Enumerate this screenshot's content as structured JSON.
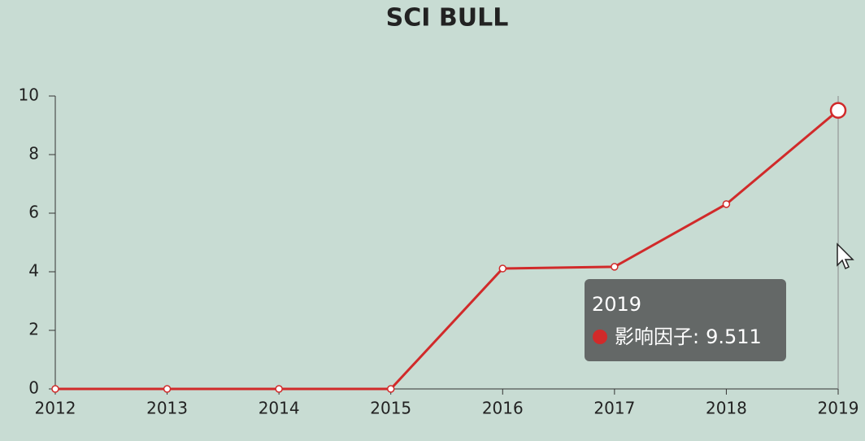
{
  "chart_data": {
    "type": "line",
    "title": "SCI BULL",
    "categories": [
      "2012",
      "2013",
      "2014",
      "2015",
      "2016",
      "2017",
      "2018",
      "2019"
    ],
    "series": [
      {
        "name": "影响因子",
        "color": "#d12a2a",
        "values": [
          0,
          0,
          0,
          0,
          4.11,
          4.17,
          6.31,
          9.511
        ]
      }
    ],
    "ylim": [
      0,
      10
    ],
    "yticks": [
      0,
      2,
      4,
      6,
      8,
      10
    ],
    "grid": false,
    "tooltip": {
      "index": 7,
      "separator": ":"
    }
  }
}
